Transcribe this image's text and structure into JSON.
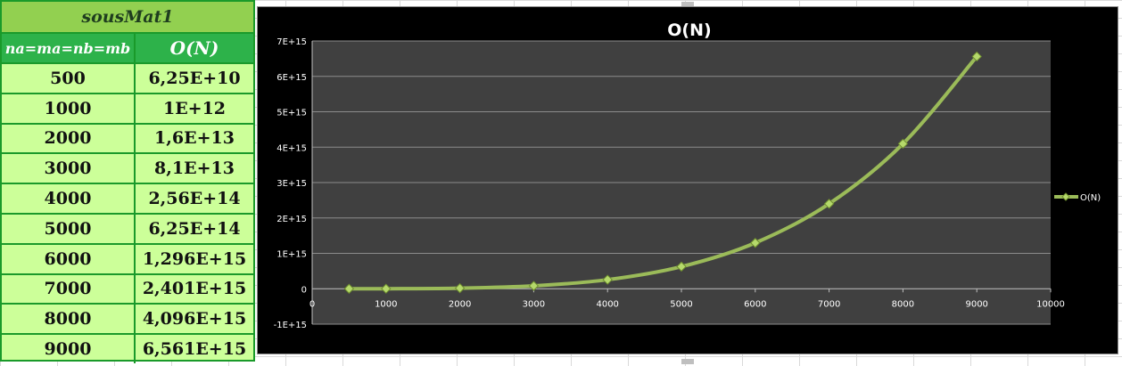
{
  "table": {
    "title": "sousMat1",
    "col1_header": "na=ma=nb=mb",
    "col2_header": "O(N)",
    "rows": [
      {
        "n": "500",
        "o": "6,25E+10"
      },
      {
        "n": "1000",
        "o": "1E+12"
      },
      {
        "n": "2000",
        "o": "1,6E+13"
      },
      {
        "n": "3000",
        "o": "8,1E+13"
      },
      {
        "n": "4000",
        "o": "2,56E+14"
      },
      {
        "n": "5000",
        "o": "6,25E+14"
      },
      {
        "n": "6000",
        "o": "1,296E+15"
      },
      {
        "n": "7000",
        "o": "2,401E+15"
      },
      {
        "n": "8000",
        "o": "4,096E+15"
      },
      {
        "n": "9000",
        "o": "6,561E+15"
      }
    ]
  },
  "colors": {
    "series": "#9bbb59",
    "plot_bg": "#404040",
    "chart_bg": "#000000",
    "table_border": "#1a9a2a",
    "table_header": "#2db24a",
    "table_title_bg": "#92d050",
    "table_cell_bg": "#ccff99"
  },
  "chart_data": {
    "type": "line",
    "title": "O(N)",
    "xlabel": "",
    "ylabel": "",
    "xlim": [
      0,
      10000
    ],
    "ylim": [
      -1000000000000000.0,
      7000000000000000.0
    ],
    "x_ticks": [
      "0",
      "1000",
      "2000",
      "3000",
      "4000",
      "5000",
      "6000",
      "7000",
      "8000",
      "9000",
      "10000"
    ],
    "y_ticks": [
      "-1E+15",
      "0",
      "1E+15",
      "2E+15",
      "3E+15",
      "4E+15",
      "5E+15",
      "6E+15",
      "7E+15"
    ],
    "grid": "horizontal",
    "legend_position": "right",
    "series": [
      {
        "name": "O(N)",
        "x": [
          500,
          1000,
          2000,
          3000,
          4000,
          5000,
          6000,
          7000,
          8000,
          9000
        ],
        "values": [
          62500000000.0,
          1000000000000.0,
          16000000000000.0,
          81000000000000.0,
          256000000000000.0,
          625000000000000.0,
          1296000000000000.0,
          2401000000000000.0,
          4096000000000000.0,
          6561000000000000.0
        ]
      }
    ]
  }
}
